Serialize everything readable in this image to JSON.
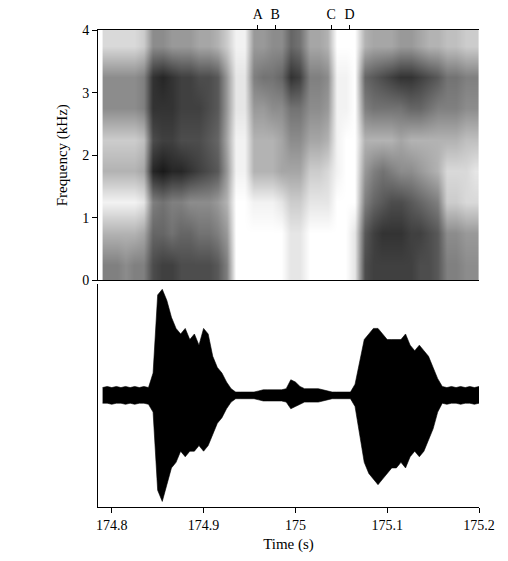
{
  "chart_data": [
    {
      "type": "heatmap",
      "ylabel": "Frequency (kHz)",
      "xlim": [
        174.785,
        175.2
      ],
      "ylim": [
        0,
        4
      ],
      "yticks": [
        0,
        1,
        2,
        3,
        4
      ],
      "tick_labels": "y",
      "color": "#000000",
      "zlim": [
        0,
        1
      ],
      "annotations": [
        {
          "text": "A",
          "x": 174.959
        },
        {
          "text": "B",
          "x": 174.978
        },
        {
          "text": "C",
          "x": 175.039
        },
        {
          "text": "D",
          "x": 175.059
        }
      ],
      "x": [
        174.795,
        174.805,
        174.815,
        174.825,
        174.835,
        174.845,
        174.855,
        174.865,
        174.875,
        174.885,
        174.895,
        174.905,
        174.915,
        174.925,
        174.935,
        174.945,
        174.955,
        174.965,
        174.975,
        174.985,
        174.995,
        175.005,
        175.015,
        175.025,
        175.035,
        175.045,
        175.055,
        175.065,
        175.075,
        175.085,
        175.095,
        175.105,
        175.115,
        175.125,
        175.135,
        175.145,
        175.155,
        175.165,
        175.175,
        175.185,
        175.195
      ],
      "y": [
        0.25,
        0.75,
        1.25,
        1.75,
        2.25,
        2.75,
        3.25,
        3.75
      ],
      "z": [
        [
          0.5,
          0.5,
          0.45,
          0.5,
          0.5,
          0.7,
          0.75,
          0.75,
          0.7,
          0.7,
          0.7,
          0.7,
          0.65,
          0.5,
          0,
          0,
          0,
          0,
          0,
          0,
          0.1,
          0.1,
          0,
          0,
          0,
          0,
          0,
          0.1,
          0.7,
          0.75,
          0.75,
          0.75,
          0.75,
          0.75,
          0.7,
          0.7,
          0.65,
          0.5,
          0.5,
          0.45,
          0.45
        ],
        [
          0.3,
          0.3,
          0.3,
          0.3,
          0.35,
          0.6,
          0.6,
          0.55,
          0.6,
          0.6,
          0.55,
          0.55,
          0.5,
          0.4,
          0,
          0,
          0,
          0,
          0,
          0,
          0.1,
          0.1,
          0,
          0,
          0,
          0,
          0,
          0.1,
          0.65,
          0.75,
          0.8,
          0.8,
          0.8,
          0.75,
          0.75,
          0.7,
          0.65,
          0.45,
          0.45,
          0.4,
          0.4
        ],
        [
          0.05,
          0.05,
          0.05,
          0.05,
          0.1,
          0.5,
          0.55,
          0.5,
          0.5,
          0.45,
          0.45,
          0.45,
          0.4,
          0.3,
          0,
          0,
          0.05,
          0.05,
          0.05,
          0.1,
          0.2,
          0.2,
          0.1,
          0.1,
          0.1,
          0,
          0,
          0,
          0.5,
          0.6,
          0.65,
          0.7,
          0.7,
          0.65,
          0.6,
          0.55,
          0.5,
          0.2,
          0.2,
          0.15,
          0.15
        ],
        [
          0.3,
          0.3,
          0.3,
          0.3,
          0.35,
          0.85,
          0.9,
          0.85,
          0.85,
          0.8,
          0.75,
          0.7,
          0.65,
          0.4,
          0.05,
          0.05,
          0.3,
          0.3,
          0.3,
          0.35,
          0.35,
          0.35,
          0.2,
          0.2,
          0.15,
          0.05,
          0,
          0,
          0.4,
          0.5,
          0.55,
          0.5,
          0.45,
          0.45,
          0.4,
          0.35,
          0.3,
          0.15,
          0.15,
          0.15,
          0.1
        ],
        [
          0.2,
          0.2,
          0.2,
          0.2,
          0.25,
          0.7,
          0.75,
          0.75,
          0.7,
          0.7,
          0.7,
          0.65,
          0.6,
          0.35,
          0.05,
          0.05,
          0.3,
          0.3,
          0.3,
          0.35,
          0.45,
          0.45,
          0.35,
          0.35,
          0.3,
          0.05,
          0,
          0,
          0.3,
          0.3,
          0.3,
          0.3,
          0.35,
          0.3,
          0.3,
          0.3,
          0.3,
          0.3,
          0.3,
          0.25,
          0.25
        ],
        [
          0.45,
          0.45,
          0.45,
          0.45,
          0.5,
          0.8,
          0.8,
          0.8,
          0.75,
          0.75,
          0.75,
          0.7,
          0.65,
          0.4,
          0.1,
          0.1,
          0.4,
          0.4,
          0.45,
          0.45,
          0.55,
          0.55,
          0.45,
          0.45,
          0.4,
          0.05,
          0.05,
          0,
          0.5,
          0.55,
          0.55,
          0.55,
          0.55,
          0.6,
          0.6,
          0.55,
          0.5,
          0.5,
          0.5,
          0.45,
          0.45
        ],
        [
          0.45,
          0.45,
          0.45,
          0.45,
          0.5,
          0.8,
          0.85,
          0.8,
          0.75,
          0.75,
          0.7,
          0.7,
          0.65,
          0.4,
          0.1,
          0.1,
          0.5,
          0.55,
          0.55,
          0.6,
          0.8,
          0.75,
          0.5,
          0.5,
          0.45,
          0.05,
          0.05,
          0,
          0.6,
          0.65,
          0.7,
          0.75,
          0.8,
          0.8,
          0.75,
          0.7,
          0.65,
          0.55,
          0.55,
          0.5,
          0.5
        ],
        [
          0.15,
          0.15,
          0.15,
          0.15,
          0.2,
          0.45,
          0.45,
          0.4,
          0.4,
          0.4,
          0.35,
          0.35,
          0.3,
          0.2,
          0.05,
          0.05,
          0.4,
          0.4,
          0.45,
          0.45,
          0.6,
          0.55,
          0.35,
          0.35,
          0.3,
          0,
          0,
          0,
          0.3,
          0.35,
          0.35,
          0.35,
          0.4,
          0.4,
          0.35,
          0.3,
          0.3,
          0.25,
          0.25,
          0.2,
          0.2
        ]
      ]
    },
    {
      "type": "line",
      "xlabel": "Time (s)",
      "xlim": [
        174.785,
        175.2
      ],
      "xticks": [
        174.8,
        174.9,
        175,
        175.1,
        175.2
      ],
      "ylim": [
        -1,
        1
      ],
      "tick_labels": "x",
      "color": "#000000",
      "x": [
        174.79,
        174.795,
        174.8,
        174.805,
        174.81,
        174.815,
        174.82,
        174.825,
        174.83,
        174.835,
        174.84,
        174.845,
        174.85,
        174.855,
        174.86,
        174.865,
        174.87,
        174.875,
        174.88,
        174.885,
        174.89,
        174.895,
        174.9,
        174.905,
        174.91,
        174.915,
        174.92,
        174.925,
        174.93,
        174.935,
        174.94,
        174.945,
        174.95,
        174.955,
        174.96,
        174.965,
        174.97,
        174.975,
        174.98,
        174.985,
        174.99,
        174.995,
        175,
        175.005,
        175.01,
        175.015,
        175.02,
        175.025,
        175.03,
        175.035,
        175.04,
        175.045,
        175.05,
        175.055,
        175.06,
        175.065,
        175.07,
        175.075,
        175.08,
        175.085,
        175.09,
        175.095,
        175.1,
        175.105,
        175.11,
        175.115,
        175.12,
        175.125,
        175.13,
        175.135,
        175.14,
        175.145,
        175.15,
        175.155,
        175.16,
        175.165,
        175.17,
        175.175,
        175.18,
        175.185,
        175.19,
        175.195,
        175.2
      ],
      "upper": [
        0.07,
        0.08,
        0.07,
        0.08,
        0.07,
        0.08,
        0.07,
        0.08,
        0.07,
        0.08,
        0.07,
        0.2,
        0.9,
        0.95,
        0.85,
        0.7,
        0.6,
        0.55,
        0.6,
        0.5,
        0.55,
        0.45,
        0.6,
        0.55,
        0.35,
        0.25,
        0.2,
        0.12,
        0.06,
        0.03,
        0.03,
        0.03,
        0.03,
        0.03,
        0.04,
        0.05,
        0.05,
        0.05,
        0.05,
        0.05,
        0.06,
        0.14,
        0.12,
        0.08,
        0.06,
        0.06,
        0.06,
        0.06,
        0.05,
        0.04,
        0.03,
        0.03,
        0.03,
        0.03,
        0.03,
        0.1,
        0.3,
        0.5,
        0.55,
        0.6,
        0.6,
        0.55,
        0.5,
        0.5,
        0.5,
        0.5,
        0.55,
        0.45,
        0.4,
        0.45,
        0.4,
        0.35,
        0.25,
        0.15,
        0.08,
        0.07,
        0.08,
        0.07,
        0.08,
        0.07,
        0.08,
        0.07,
        0.08
      ],
      "lower": [
        -0.07,
        -0.07,
        -0.08,
        -0.07,
        -0.07,
        -0.08,
        -0.07,
        -0.08,
        -0.07,
        -0.07,
        -0.08,
        -0.15,
        -0.85,
        -0.95,
        -0.8,
        -0.65,
        -0.6,
        -0.5,
        -0.55,
        -0.5,
        -0.5,
        -0.45,
        -0.5,
        -0.45,
        -0.35,
        -0.25,
        -0.2,
        -0.12,
        -0.06,
        -0.03,
        -0.03,
        -0.03,
        -0.03,
        -0.03,
        -0.04,
        -0.05,
        -0.05,
        -0.05,
        -0.05,
        -0.05,
        -0.06,
        -0.12,
        -0.1,
        -0.08,
        -0.06,
        -0.06,
        -0.06,
        -0.06,
        -0.05,
        -0.04,
        -0.03,
        -0.03,
        -0.03,
        -0.03,
        -0.03,
        -0.1,
        -0.35,
        -0.6,
        -0.7,
        -0.75,
        -0.8,
        -0.75,
        -0.7,
        -0.65,
        -0.65,
        -0.6,
        -0.65,
        -0.55,
        -0.5,
        -0.55,
        -0.5,
        -0.4,
        -0.3,
        -0.15,
        -0.07,
        -0.08,
        -0.07,
        -0.07,
        -0.08,
        -0.07,
        -0.07,
        -0.08,
        -0.07
      ]
    }
  ]
}
